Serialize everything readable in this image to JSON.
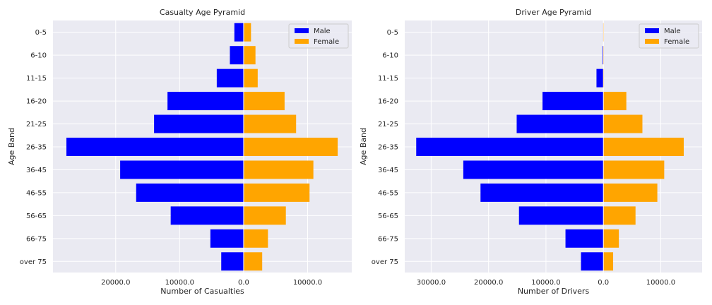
{
  "chart_data": [
    {
      "type": "bar",
      "orientation": "horizontal-pyramid",
      "title": "Casualty Age Pyramid",
      "xlabel": "Number of Casualties",
      "ylabel": "Age Band",
      "categories": [
        "0-5",
        "6-10",
        "11-15",
        "16-20",
        "21-25",
        "26-35",
        "36-45",
        "46-55",
        "56-65",
        "66-75",
        "over 75"
      ],
      "series": [
        {
          "name": "Male",
          "color": "#0000ff",
          "values": [
            1450,
            2150,
            4200,
            11900,
            14000,
            27700,
            19300,
            16800,
            11400,
            5200,
            3500
          ]
        },
        {
          "name": "Female",
          "color": "#ffa500",
          "values": [
            1150,
            1850,
            2200,
            6400,
            8200,
            14700,
            10900,
            10300,
            6600,
            3800,
            2900
          ]
        }
      ],
      "xlim": [
        -29800,
        16900
      ],
      "xticks": [
        -20000,
        -10000,
        0,
        10000
      ],
      "xtick_labels": [
        "20000.0",
        "10000.0",
        "0.0",
        "10000.0"
      ],
      "grid": true,
      "legend": "top-right"
    },
    {
      "type": "bar",
      "orientation": "horizontal-pyramid",
      "title": "Driver Age Pyramid",
      "xlabel": "Number of Drivers",
      "ylabel": "Age Band",
      "categories": [
        "0-5",
        "6-10",
        "11-15",
        "16-20",
        "21-25",
        "26-35",
        "36-45",
        "46-55",
        "56-65",
        "66-75",
        "over 75"
      ],
      "series": [
        {
          "name": "Male",
          "color": "#0000ff",
          "values": [
            50,
            150,
            1200,
            10600,
            15100,
            32600,
            24400,
            21400,
            14700,
            6600,
            3900
          ]
        },
        {
          "name": "Female",
          "color": "#ffa500",
          "values": [
            40,
            80,
            100,
            4000,
            6800,
            14000,
            10600,
            9400,
            5600,
            2700,
            1700
          ]
        }
      ],
      "xlim": [
        -34600,
        17200
      ],
      "xticks": [
        -30000,
        -20000,
        -10000,
        0,
        10000
      ],
      "xtick_labels": [
        "30000.0",
        "20000.0",
        "10000.0",
        "0.0",
        "10000.0"
      ],
      "grid": true,
      "legend": "top-right"
    }
  ],
  "colors": {
    "plot_background": "#eaeaf2",
    "grid": "#ffffff",
    "text": "#262626"
  }
}
